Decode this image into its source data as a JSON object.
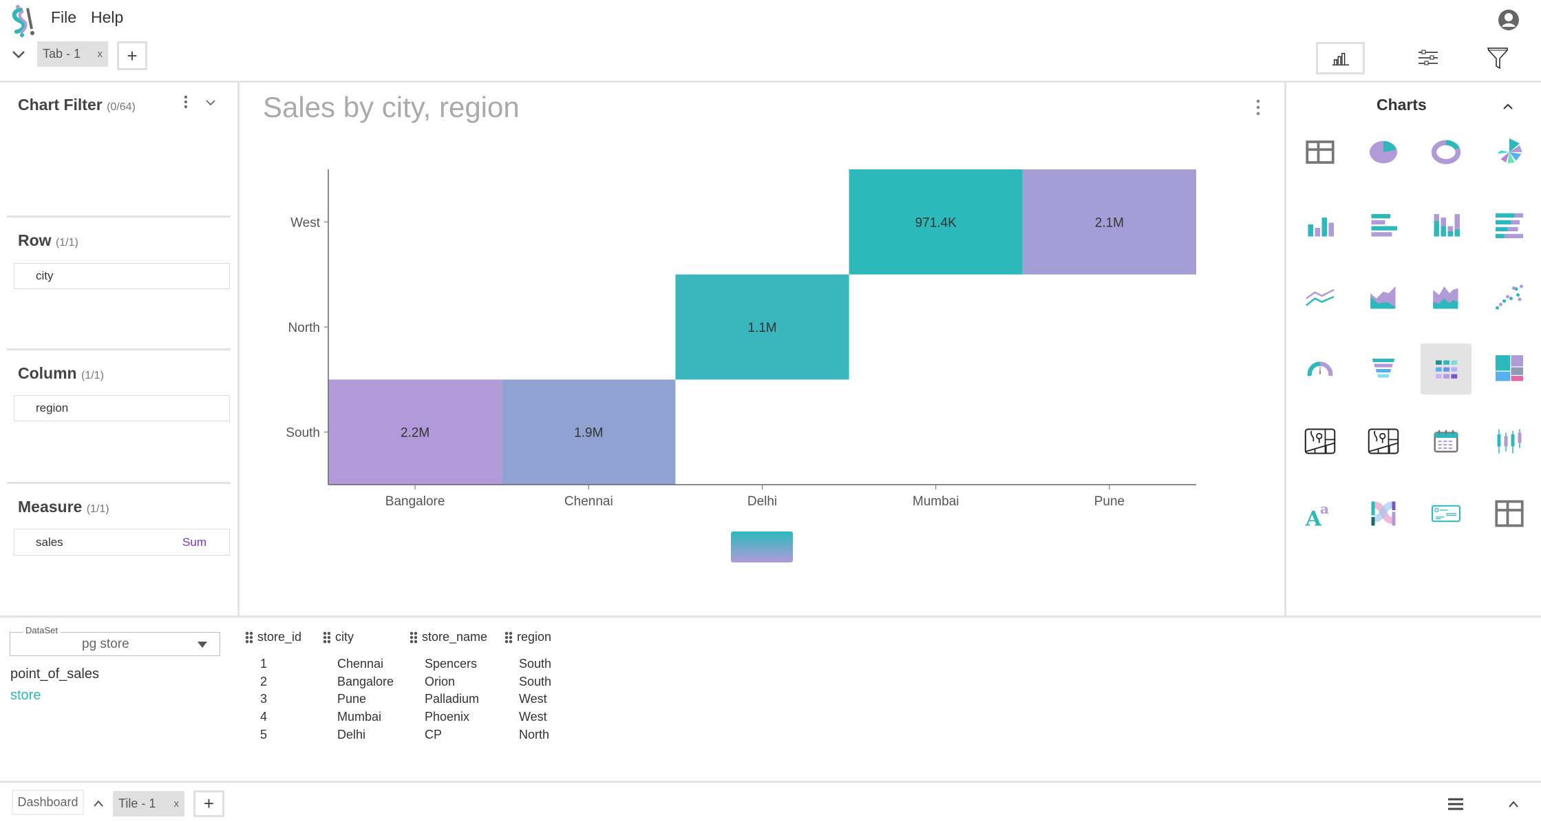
{
  "header": {
    "menu": [
      "File",
      "Help"
    ],
    "tabs": [
      {
        "label": "Tab - 1",
        "close": "x"
      }
    ],
    "add_tab": "+",
    "toolbar_icons": [
      "bar-chart-icon",
      "sliders-icon",
      "funnel-icon"
    ],
    "account_icon": "account-circle-icon"
  },
  "left_panel": {
    "chart_filter": {
      "title": "Chart Filter",
      "count": "(0/64)"
    },
    "row": {
      "title": "Row",
      "count": "(1/1)",
      "fields": [
        "city"
      ]
    },
    "column": {
      "title": "Column",
      "count": "(1/1)",
      "fields": [
        "region"
      ]
    },
    "measure": {
      "title": "Measure",
      "count": "(1/1)",
      "fields": [
        {
          "name": "sales",
          "agg": "Sum"
        }
      ]
    }
  },
  "chart": {
    "title": "Sales by city, region"
  },
  "chart_data": {
    "type": "heatmap",
    "title": "Sales by city, region",
    "x_categories": [
      "Bangalore",
      "Chennai",
      "Delhi",
      "Mumbai",
      "Pune"
    ],
    "y_categories": [
      "South",
      "North",
      "West"
    ],
    "cells": [
      {
        "x": "Bangalore",
        "y": "South",
        "value": 2200000,
        "label": "2.2M"
      },
      {
        "x": "Chennai",
        "y": "South",
        "value": 1900000,
        "label": "1.9M"
      },
      {
        "x": "Delhi",
        "y": "North",
        "value": 1100000,
        "label": "1.1M"
      },
      {
        "x": "Mumbai",
        "y": "West",
        "value": 971400,
        "label": "971.4K"
      },
      {
        "x": "Pune",
        "y": "West",
        "value": 2100000,
        "label": "2.1M"
      }
    ],
    "color_scale": {
      "low": "#2cb9bc",
      "high": "#b09ad8"
    },
    "legend": "bottom"
  },
  "charts_panel": {
    "title": "Charts",
    "icons": [
      "table-icon",
      "pie-chart-icon",
      "donut-chart-icon",
      "rose-chart-icon",
      "bar-chart-icon",
      "horizontal-bar-icon",
      "stacked-bar-icon",
      "stacked-horizontal-bar-icon",
      "line-chart-icon",
      "area-chart-icon",
      "stacked-area-icon",
      "scatter-chart-icon",
      "gauge-icon",
      "funnel-chart-icon",
      "heatmap-icon",
      "treemap-icon",
      "map-icon",
      "filled-map-icon",
      "calendar-icon",
      "candlestick-icon",
      "rich-text-icon",
      "sankey-icon",
      "simple-card-icon",
      "pivot-table-icon"
    ],
    "selected": "heatmap-icon"
  },
  "dataset": {
    "label": "DataSet",
    "selected": "pg store",
    "tables": [
      "point_of_sales",
      "store"
    ],
    "active_table": "store"
  },
  "data_table": {
    "columns": [
      "store_id",
      "city",
      "store_name",
      "region"
    ],
    "rows": [
      [
        "1",
        "Chennai",
        "Spencers",
        "South"
      ],
      [
        "2",
        "Bangalore",
        "Orion",
        "South"
      ],
      [
        "3",
        "Pune",
        "Palladium",
        "West"
      ],
      [
        "4",
        "Mumbai",
        "Phoenix",
        "West"
      ],
      [
        "5",
        "Delhi",
        "CP",
        "North"
      ]
    ]
  },
  "footer": {
    "dashboard": "Dashboard",
    "tiles": [
      {
        "label": "Tile - 1",
        "close": "x"
      }
    ],
    "add_tile": "+"
  },
  "colors": {
    "accent": "#2cb9bc",
    "purple": "#b09ad8",
    "measure_agg": "#7b2fd6"
  }
}
